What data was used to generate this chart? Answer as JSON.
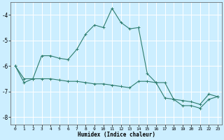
{
  "xlabel": "Humidex (Indice chaleur)",
  "bg_color": "#cceeff",
  "grid_color": "#ffffff",
  "line_color": "#2e7d6e",
  "xlim": [
    -0.5,
    23.5
  ],
  "ylim": [
    -8.3,
    -3.5
  ],
  "xticks": [
    0,
    1,
    2,
    3,
    4,
    5,
    6,
    7,
    8,
    9,
    10,
    11,
    12,
    13,
    14,
    15,
    16,
    17,
    18,
    19,
    20,
    21,
    22,
    23
  ],
  "yticks": [
    -8,
    -7,
    -6,
    -5,
    -4
  ],
  "line1_x": [
    0,
    1,
    2,
    3,
    4,
    5,
    6,
    7,
    8,
    9,
    10,
    11,
    12,
    13,
    14,
    15,
    16,
    17,
    18,
    19,
    20,
    21,
    22,
    23
  ],
  "line1_y": [
    -6.0,
    -6.65,
    -6.5,
    -5.6,
    -5.6,
    -5.7,
    -5.75,
    -5.35,
    -4.75,
    -4.4,
    -4.5,
    -3.75,
    -4.3,
    -4.55,
    -4.5,
    -6.3,
    -6.65,
    -7.25,
    -7.3,
    -7.55,
    -7.55,
    -7.65,
    -7.3,
    -7.2
  ],
  "line2_x": [
    0,
    1,
    2,
    3,
    4,
    5,
    6,
    7,
    8,
    9,
    10,
    11,
    12,
    13,
    14,
    15,
    16,
    17,
    18,
    19,
    20,
    21,
    22,
    23
  ],
  "line2_y": [
    -6.0,
    -6.5,
    -6.5,
    -6.5,
    -6.5,
    -6.55,
    -6.6,
    -6.6,
    -6.65,
    -6.7,
    -6.7,
    -6.75,
    -6.8,
    -6.85,
    -6.6,
    -6.6,
    -6.65,
    -6.65,
    -7.3,
    -7.35,
    -7.4,
    -7.5,
    -7.1,
    -7.2
  ]
}
